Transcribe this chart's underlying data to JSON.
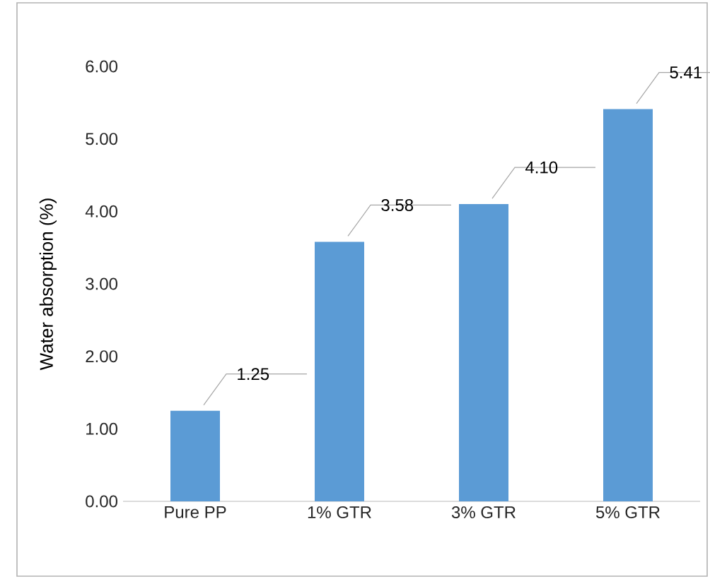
{
  "chart_data": {
    "type": "bar",
    "ylabel": "Water absorption (%)",
    "categories": [
      "Pure PP",
      "1% GTR",
      "3% GTR",
      "5% GTR"
    ],
    "values": [
      1.25,
      3.58,
      4.1,
      5.41
    ],
    "value_labels": [
      "1.25",
      "3.58",
      "4.10",
      "5.41"
    ],
    "color": "#5b9bd5",
    "ylim": [
      0,
      6
    ],
    "yticks": [
      {
        "value": 0,
        "label": "0.00"
      },
      {
        "value": 1,
        "label": "1.00"
      },
      {
        "value": 2,
        "label": "2.00"
      },
      {
        "value": 3,
        "label": "3.00"
      },
      {
        "value": 4,
        "label": "4.00"
      },
      {
        "value": 5,
        "label": "5.00"
      },
      {
        "value": 6,
        "label": "6.00"
      }
    ],
    "grid": false
  }
}
